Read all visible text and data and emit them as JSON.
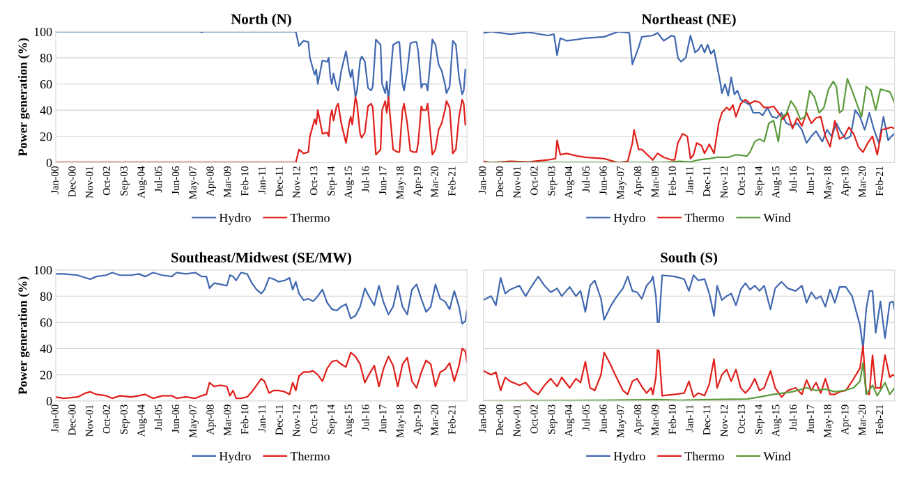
{
  "chart_data": [
    {
      "type": "line",
      "title": "North (N)",
      "ylabel": "Power generation (%)",
      "xlim": [
        "2000-01",
        "2021-11"
      ],
      "ylim": [
        0,
        100
      ],
      "yticks": [
        0,
        20,
        40,
        60,
        80,
        100
      ],
      "grid": "y",
      "legend": "bottom",
      "xticks": [
        {
          "value": "2000-01",
          "label": "Jan-00"
        },
        {
          "value": "2000-12",
          "label": "Dec-00"
        },
        {
          "value": "2001-11",
          "label": "Nov-01"
        },
        {
          "value": "2002-10",
          "label": "Oct-02"
        },
        {
          "value": "2003-09",
          "label": "Sep-03"
        },
        {
          "value": "2004-08",
          "label": "Aug-04"
        },
        {
          "value": "2005-07",
          "label": "Jul-05"
        },
        {
          "value": "2006-06",
          "label": "Jun-06"
        },
        {
          "value": "2007-05",
          "label": "May-07"
        },
        {
          "value": "2008-04",
          "label": "Apr-08"
        },
        {
          "value": "2009-03",
          "label": "Mar-09"
        },
        {
          "value": "2010-02",
          "label": "Feb-10"
        },
        {
          "value": "2011-01",
          "label": "Jan-11"
        },
        {
          "value": "2011-12",
          "label": "Dec-11"
        },
        {
          "value": "2012-11",
          "label": "Nov-12"
        },
        {
          "value": "2013-10",
          "label": "Oct-13"
        },
        {
          "value": "2014-09",
          "label": "Sep-14"
        },
        {
          "value": "2015-08",
          "label": "Aug-15"
        },
        {
          "value": "2016-07",
          "label": "Jul-16"
        },
        {
          "value": "2017-06",
          "label": "Jun-17"
        },
        {
          "value": "2018-05",
          "label": "May-18"
        },
        {
          "value": "2019-04",
          "label": "Apr-19"
        },
        {
          "value": "2020-03",
          "label": "Mar-20"
        },
        {
          "value": "2021-02",
          "label": "Feb-21"
        }
      ],
      "series": [
        {
          "name": "Hydro",
          "color": "#4068b0",
          "x": [
            "2000-01",
            "2007-09",
            "2007-10",
            "2007-11",
            "2012-10",
            "2012-12",
            "2013-03",
            "2013-06",
            "2013-07",
            "2013-10",
            "2013-11",
            "2013-12",
            "2014-03",
            "2014-06",
            "2014-07",
            "2014-08",
            "2014-09",
            "2014-10",
            "2014-12",
            "2015-01",
            "2015-03",
            "2015-06",
            "2015-08",
            "2015-09",
            "2015-10",
            "2015-12",
            "2016-01",
            "2016-03",
            "2016-04",
            "2016-06",
            "2016-08",
            "2016-10",
            "2016-11",
            "2017-01",
            "2017-04",
            "2017-05",
            "2017-07",
            "2017-08",
            "2017-09",
            "2017-12",
            "2018-03",
            "2018-04",
            "2018-06",
            "2018-07",
            "2018-09",
            "2018-11",
            "2019-01",
            "2019-03",
            "2019-04",
            "2019-06",
            "2019-07",
            "2019-09",
            "2019-10",
            "2020-01",
            "2020-03",
            "2020-05",
            "2020-07",
            "2020-09",
            "2020-10",
            "2020-12",
            "2021-02",
            "2021-04",
            "2021-06",
            "2021-08",
            "2021-09",
            "2021-10"
          ],
          "values": [
            100,
            100,
            99.5,
            100,
            100,
            89,
            93,
            92,
            80,
            67,
            71,
            60,
            78,
            77,
            80,
            65,
            60,
            68,
            57,
            55,
            70,
            85,
            70,
            65,
            71,
            50,
            55,
            78,
            81,
            77,
            57,
            55,
            58,
            94,
            90,
            60,
            53,
            62,
            47,
            90,
            92,
            92,
            60,
            55,
            70,
            91,
            92,
            92,
            85,
            57,
            60,
            60,
            55,
            94,
            90,
            75,
            70,
            60,
            53,
            58,
            93,
            90,
            65,
            52,
            55,
            71
          ]
        },
        {
          "name": "Thermo",
          "color": "#e0201b",
          "x": [
            "2000-01",
            "2012-10",
            "2012-12",
            "2013-03",
            "2013-06",
            "2013-07",
            "2013-10",
            "2013-11",
            "2013-12",
            "2014-03",
            "2014-06",
            "2014-07",
            "2014-08",
            "2014-09",
            "2014-10",
            "2014-12",
            "2015-01",
            "2015-03",
            "2015-06",
            "2015-08",
            "2015-09",
            "2015-10",
            "2015-12",
            "2016-01",
            "2016-03",
            "2016-04",
            "2016-06",
            "2016-08",
            "2016-10",
            "2016-11",
            "2017-01",
            "2017-04",
            "2017-05",
            "2017-07",
            "2017-08",
            "2017-09",
            "2017-12",
            "2018-03",
            "2018-04",
            "2018-06",
            "2018-07",
            "2018-09",
            "2018-11",
            "2019-01",
            "2019-03",
            "2019-04",
            "2019-06",
            "2019-07",
            "2019-09",
            "2019-10",
            "2020-01",
            "2020-03",
            "2020-05",
            "2020-07",
            "2020-09",
            "2020-10",
            "2020-12",
            "2021-02",
            "2021-04",
            "2021-06",
            "2021-08",
            "2021-09",
            "2021-10"
          ],
          "values": [
            0,
            0,
            10,
            7,
            8,
            20,
            33,
            29,
            40,
            22,
            23,
            20,
            35,
            40,
            32,
            43,
            45,
            30,
            15,
            30,
            35,
            29,
            50,
            45,
            22,
            19,
            23,
            43,
            45,
            42,
            6,
            10,
            40,
            47,
            38,
            50,
            10,
            8,
            8,
            40,
            45,
            30,
            9,
            8,
            8,
            15,
            43,
            40,
            40,
            45,
            6,
            10,
            25,
            30,
            40,
            47,
            42,
            7,
            10,
            35,
            48,
            45,
            29
          ]
        }
      ]
    },
    {
      "type": "line",
      "title": "Northeast (NE)",
      "xlim": [
        "2000-01",
        "2021-11"
      ],
      "ylim": [
        0,
        100
      ],
      "yticks": [
        0,
        20,
        40,
        60,
        80,
        100
      ],
      "grid": "y",
      "legend": "bottom",
      "tick_labels": "x",
      "xticks": [
        {
          "value": "2000-01",
          "label": "Jan-00"
        },
        {
          "value": "2000-12",
          "label": "Dec-00"
        },
        {
          "value": "2001-11",
          "label": "Nov-01"
        },
        {
          "value": "2002-10",
          "label": "Oct-02"
        },
        {
          "value": "2003-09",
          "label": "Sep-03"
        },
        {
          "value": "2004-08",
          "label": "Aug-04"
        },
        {
          "value": "2005-07",
          "label": "Jul-05"
        },
        {
          "value": "2006-06",
          "label": "Jun-06"
        },
        {
          "value": "2007-05",
          "label": "May-07"
        },
        {
          "value": "2008-04",
          "label": "Apr-08"
        },
        {
          "value": "2009-03",
          "label": "Mar-09"
        },
        {
          "value": "2010-02",
          "label": "Feb-10"
        },
        {
          "value": "2011-01",
          "label": "Jan-11"
        },
        {
          "value": "2011-12",
          "label": "Dec-11"
        },
        {
          "value": "2012-11",
          "label": "Nov-12"
        },
        {
          "value": "2013-10",
          "label": "Oct-13"
        },
        {
          "value": "2014-09",
          "label": "Sep-14"
        },
        {
          "value": "2015-08",
          "label": "Aug-15"
        },
        {
          "value": "2016-07",
          "label": "Jul-16"
        },
        {
          "value": "2017-06",
          "label": "Jun-17"
        },
        {
          "value": "2018-05",
          "label": "May-18"
        },
        {
          "value": "2019-04",
          "label": "Apr-19"
        },
        {
          "value": "2020-03",
          "label": "Mar-20"
        },
        {
          "value": "2021-02",
          "label": "Feb-21"
        }
      ],
      "series": [
        {
          "name": "Hydro",
          "color": "#4068b0",
          "x": [
            "2000-01",
            "2000-06",
            "2001-06",
            "2002-06",
            "2003-06",
            "2003-10",
            "2003-12",
            "2004-02",
            "2004-06",
            "2005-01",
            "2005-06",
            "2006-06",
            "2007-03",
            "2007-10",
            "2007-12",
            "2008-04",
            "2008-06",
            "2009-01",
            "2009-04",
            "2009-08",
            "2010-01",
            "2010-03",
            "2010-05",
            "2010-07",
            "2010-10",
            "2011-01",
            "2011-04",
            "2011-06",
            "2011-08",
            "2011-10",
            "2011-12",
            "2012-02",
            "2012-04",
            "2012-08",
            "2012-09",
            "2012-11",
            "2013-01",
            "2013-03",
            "2013-05",
            "2013-07",
            "2013-09",
            "2013-12",
            "2014-03",
            "2014-05",
            "2014-09",
            "2014-11",
            "2015-02",
            "2015-05",
            "2015-08",
            "2015-11",
            "2016-02",
            "2016-06",
            "2016-09",
            "2016-12",
            "2017-03",
            "2017-06",
            "2017-09",
            "2018-01",
            "2018-04",
            "2018-07",
            "2018-10",
            "2019-01",
            "2019-04",
            "2019-07",
            "2019-10",
            "2020-01",
            "2020-04",
            "2020-07",
            "2020-10",
            "2021-01",
            "2021-04",
            "2021-07",
            "2021-09",
            "2021-11"
          ],
          "values": [
            99,
            100,
            98,
            99.5,
            97,
            98,
            82,
            95,
            93,
            94,
            95,
            96,
            100,
            99,
            75,
            88,
            96,
            97,
            99,
            93,
            97,
            96,
            80,
            77,
            80,
            97,
            84,
            86,
            90,
            84,
            90,
            83,
            86,
            61,
            53,
            60,
            51,
            65,
            52,
            55,
            48,
            46,
            44,
            38,
            38,
            36,
            42,
            35,
            34,
            38,
            30,
            28,
            30,
            25,
            15,
            20,
            24,
            16,
            25,
            20,
            30,
            23,
            18,
            20,
            40,
            35,
            25,
            38,
            25,
            15,
            35,
            17,
            20,
            22
          ]
        },
        {
          "name": "Thermo",
          "color": "#e0201b",
          "x": [
            "2000-01",
            "2000-06",
            "2001-06",
            "2002-06",
            "2003-06",
            "2003-11",
            "2003-12",
            "2004-02",
            "2004-06",
            "2005-01",
            "2005-06",
            "2006-06",
            "2007-03",
            "2007-09",
            "2007-12",
            "2008-01",
            "2008-04",
            "2008-06",
            "2009-01",
            "2009-04",
            "2009-08",
            "2010-01",
            "2010-03",
            "2010-05",
            "2010-08",
            "2010-11",
            "2011-01",
            "2011-03",
            "2011-05",
            "2011-08",
            "2011-10",
            "2012-01",
            "2012-04",
            "2012-07",
            "2012-09",
            "2012-12",
            "2013-02",
            "2013-04",
            "2013-06",
            "2013-09",
            "2013-12",
            "2014-03",
            "2014-06",
            "2014-09",
            "2014-12",
            "2015-03",
            "2015-06",
            "2015-09",
            "2015-12",
            "2016-03",
            "2016-06",
            "2016-09",
            "2016-12",
            "2017-03",
            "2017-06",
            "2017-09",
            "2017-12",
            "2018-03",
            "2018-06",
            "2018-09",
            "2018-12",
            "2019-03",
            "2019-06",
            "2019-09",
            "2019-12",
            "2020-03",
            "2020-06",
            "2020-09",
            "2020-12",
            "2021-03",
            "2021-06",
            "2021-09",
            "2021-11"
          ],
          "values": [
            1,
            0,
            1,
            0.5,
            2,
            3,
            17,
            6,
            7,
            5,
            4,
            3,
            0,
            1,
            15,
            25,
            10,
            10,
            2,
            7,
            4,
            2,
            2,
            15,
            22,
            20,
            3,
            6,
            15,
            13,
            7,
            14,
            7,
            30,
            38,
            42,
            40,
            44,
            35,
            45,
            48,
            45,
            47,
            46,
            42,
            42,
            43,
            38,
            33,
            38,
            26,
            34,
            28,
            38,
            30,
            34,
            35,
            20,
            12,
            32,
            18,
            20,
            27,
            22,
            12,
            8,
            15,
            20,
            6,
            25,
            26,
            27,
            26
          ]
        },
        {
          "name": "Wind",
          "color": "#5b9a3a",
          "x": [
            "2000-01",
            "2009-06",
            "2010-06",
            "2011-01",
            "2011-06",
            "2012-01",
            "2012-06",
            "2013-01",
            "2013-06",
            "2014-01",
            "2014-03",
            "2014-06",
            "2014-09",
            "2014-12",
            "2015-03",
            "2015-06",
            "2015-09",
            "2015-11",
            "2016-02",
            "2016-05",
            "2016-08",
            "2016-11",
            "2017-02",
            "2017-05",
            "2017-08",
            "2017-11",
            "2018-02",
            "2018-05",
            "2018-08",
            "2018-10",
            "2018-12",
            "2019-02",
            "2019-05",
            "2019-08",
            "2019-11",
            "2020-02",
            "2020-05",
            "2020-08",
            "2020-11",
            "2021-02",
            "2021-05",
            "2021-08",
            "2021-11"
          ],
          "values": [
            0,
            0,
            1,
            0.5,
            2,
            3,
            4,
            4,
            6,
            5,
            8,
            16,
            18,
            16,
            30,
            32,
            16,
            35,
            37,
            47,
            42,
            33,
            35,
            55,
            50,
            38,
            42,
            56,
            62,
            58,
            38,
            40,
            64,
            55,
            45,
            35,
            58,
            55,
            40,
            56,
            55,
            54,
            46
          ]
        }
      ]
    },
    {
      "type": "line",
      "title": "Southeast/Midwest (SE/MW)",
      "ylabel": "Power generation (%)",
      "xlim": [
        "2000-01",
        "2021-11"
      ],
      "ylim": [
        0,
        100
      ],
      "yticks": [
        0,
        20,
        40,
        60,
        80,
        100
      ],
      "grid": "y",
      "legend": "bottom",
      "xticks": [
        {
          "value": "2000-01",
          "label": "Jan-00"
        },
        {
          "value": "2000-12",
          "label": "Dec-00"
        },
        {
          "value": "2001-11",
          "label": "Nov-01"
        },
        {
          "value": "2002-10",
          "label": "Oct-02"
        },
        {
          "value": "2003-09",
          "label": "Sep-03"
        },
        {
          "value": "2004-08",
          "label": "Aug-04"
        },
        {
          "value": "2005-07",
          "label": "Jul-05"
        },
        {
          "value": "2006-06",
          "label": "Jun-06"
        },
        {
          "value": "2007-05",
          "label": "May-07"
        },
        {
          "value": "2008-04",
          "label": "Apr-08"
        },
        {
          "value": "2009-03",
          "label": "Mar-09"
        },
        {
          "value": "2010-02",
          "label": "Feb-10"
        },
        {
          "value": "2011-01",
          "label": "Jan-11"
        },
        {
          "value": "2011-12",
          "label": "Dec-11"
        },
        {
          "value": "2012-11",
          "label": "Nov-12"
        },
        {
          "value": "2013-10",
          "label": "Oct-13"
        },
        {
          "value": "2014-09",
          "label": "Sep-14"
        },
        {
          "value": "2015-08",
          "label": "Aug-15"
        },
        {
          "value": "2016-07",
          "label": "Jul-16"
        },
        {
          "value": "2017-06",
          "label": "Jun-17"
        },
        {
          "value": "2018-05",
          "label": "May-18"
        },
        {
          "value": "2019-04",
          "label": "Apr-19"
        },
        {
          "value": "2020-03",
          "label": "Mar-20"
        },
        {
          "value": "2021-02",
          "label": "Feb-21"
        }
      ],
      "series": [
        {
          "name": "Hydro",
          "color": "#4068b0",
          "x": [
            "2000-01",
            "2000-06",
            "2001-03",
            "2001-08",
            "2001-11",
            "2002-03",
            "2002-09",
            "2003-01",
            "2003-06",
            "2004-01",
            "2004-06",
            "2004-10",
            "2005-03",
            "2005-09",
            "2006-03",
            "2006-06",
            "2006-12",
            "2007-06",
            "2007-10",
            "2008-01",
            "2008-03",
            "2008-06",
            "2008-10",
            "2009-02",
            "2009-04",
            "2009-06",
            "2009-08",
            "2009-11",
            "2010-03",
            "2010-06",
            "2010-09",
            "2010-12",
            "2011-02",
            "2011-05",
            "2011-08",
            "2011-11",
            "2012-03",
            "2012-06",
            "2012-08",
            "2012-10",
            "2012-12",
            "2013-03",
            "2013-06",
            "2013-09",
            "2013-12",
            "2014-03",
            "2014-06",
            "2014-09",
            "2014-12",
            "2015-03",
            "2015-06",
            "2015-09",
            "2015-12",
            "2016-03",
            "2016-06",
            "2016-09",
            "2016-12",
            "2017-03",
            "2017-06",
            "2017-09",
            "2017-12",
            "2018-03",
            "2018-06",
            "2018-09",
            "2018-12",
            "2019-03",
            "2019-06",
            "2019-09",
            "2019-12",
            "2020-03",
            "2020-06",
            "2020-09",
            "2020-12",
            "2021-03",
            "2021-06",
            "2021-08",
            "2021-10",
            "2021-11"
          ],
          "values": [
            97,
            97,
            96,
            94,
            93,
            95,
            96,
            98,
            96,
            96,
            97,
            95,
            98,
            96,
            95,
            98,
            97,
            98,
            95,
            95,
            86,
            90,
            89,
            88,
            96,
            95,
            92,
            98,
            97,
            90,
            85,
            82,
            85,
            94,
            93,
            91,
            92,
            94,
            85,
            91,
            82,
            77,
            78,
            76,
            80,
            85,
            75,
            70,
            69,
            72,
            74,
            63,
            65,
            72,
            86,
            79,
            73,
            88,
            75,
            66,
            72,
            88,
            72,
            66,
            85,
            89,
            78,
            68,
            72,
            89,
            78,
            76,
            70,
            84,
            72,
            59,
            61,
            69
          ]
        },
        {
          "name": "Thermo",
          "color": "#e0201b",
          "x": [
            "2000-01",
            "2000-06",
            "2001-03",
            "2001-08",
            "2001-11",
            "2002-03",
            "2002-09",
            "2003-01",
            "2003-06",
            "2004-01",
            "2004-06",
            "2004-10",
            "2005-03",
            "2005-09",
            "2006-03",
            "2006-06",
            "2006-12",
            "2007-06",
            "2007-10",
            "2008-01",
            "2008-03",
            "2008-06",
            "2008-10",
            "2009-02",
            "2009-04",
            "2009-06",
            "2009-08",
            "2009-11",
            "2010-03",
            "2010-06",
            "2010-09",
            "2010-12",
            "2011-02",
            "2011-05",
            "2011-08",
            "2011-11",
            "2012-03",
            "2012-06",
            "2012-08",
            "2012-10",
            "2012-12",
            "2013-03",
            "2013-06",
            "2013-09",
            "2013-12",
            "2014-03",
            "2014-06",
            "2014-09",
            "2014-12",
            "2015-03",
            "2015-06",
            "2015-09",
            "2015-12",
            "2016-03",
            "2016-06",
            "2016-09",
            "2016-12",
            "2017-03",
            "2017-06",
            "2017-09",
            "2017-12",
            "2018-03",
            "2018-06",
            "2018-09",
            "2018-12",
            "2019-03",
            "2019-06",
            "2019-09",
            "2019-12",
            "2020-03",
            "2020-06",
            "2020-09",
            "2020-12",
            "2021-03",
            "2021-06",
            "2021-08",
            "2021-10",
            "2021-11"
          ],
          "values": [
            3,
            2,
            3,
            6,
            7,
            5,
            4,
            2,
            4,
            3,
            4,
            5,
            2,
            4,
            4,
            2,
            3,
            2,
            4,
            5,
            14,
            11,
            12,
            11,
            4,
            8,
            2,
            2,
            3,
            7,
            12,
            17,
            15,
            6,
            8,
            8,
            7,
            5,
            14,
            8,
            19,
            22,
            22,
            23,
            20,
            15,
            25,
            30,
            31,
            28,
            26,
            37,
            34,
            28,
            14,
            21,
            27,
            11,
            25,
            34,
            27,
            11,
            28,
            33,
            15,
            10,
            22,
            31,
            28,
            11,
            22,
            24,
            29,
            15,
            27,
            40,
            38,
            30
          ]
        }
      ]
    },
    {
      "type": "line",
      "title": "South (S)",
      "xlim": [
        "2000-01",
        "2021-11"
      ],
      "ylim": [
        0,
        100
      ],
      "yticks": [
        0,
        20,
        40,
        60,
        80,
        100
      ],
      "grid": "y",
      "legend": "bottom",
      "tick_labels": "x",
      "xticks": [
        {
          "value": "2000-01",
          "label": "Jan-00"
        },
        {
          "value": "2000-12",
          "label": "Dec-00"
        },
        {
          "value": "2001-11",
          "label": "Nov-01"
        },
        {
          "value": "2002-10",
          "label": "Oct-02"
        },
        {
          "value": "2003-09",
          "label": "Sep-03"
        },
        {
          "value": "2004-08",
          "label": "Aug-04"
        },
        {
          "value": "2005-07",
          "label": "Jul-05"
        },
        {
          "value": "2006-06",
          "label": "Jun-06"
        },
        {
          "value": "2007-05",
          "label": "May-07"
        },
        {
          "value": "2008-04",
          "label": "Apr-08"
        },
        {
          "value": "2009-03",
          "label": "Mar-09"
        },
        {
          "value": "2010-02",
          "label": "Feb-10"
        },
        {
          "value": "2011-01",
          "label": "Jan-11"
        },
        {
          "value": "2011-12",
          "label": "Dec-11"
        },
        {
          "value": "2012-11",
          "label": "Nov-12"
        },
        {
          "value": "2013-10",
          "label": "Oct-13"
        },
        {
          "value": "2014-09",
          "label": "Sep-14"
        },
        {
          "value": "2015-08",
          "label": "Aug-15"
        },
        {
          "value": "2016-07",
          "label": "Jul-16"
        },
        {
          "value": "2017-06",
          "label": "Jun-17"
        },
        {
          "value": "2018-05",
          "label": "May-18"
        },
        {
          "value": "2019-04",
          "label": "Apr-19"
        },
        {
          "value": "2020-03",
          "label": "Mar-20"
        },
        {
          "value": "2021-02",
          "label": "Feb-21"
        }
      ],
      "series": [
        {
          "name": "Hydro",
          "color": "#4068b0",
          "x": [
            "2000-01",
            "2000-06",
            "2000-09",
            "2000-12",
            "2001-03",
            "2001-06",
            "2001-12",
            "2002-04",
            "2002-08",
            "2002-12",
            "2003-04",
            "2003-08",
            "2003-12",
            "2004-03",
            "2004-08",
            "2004-12",
            "2005-03",
            "2005-06",
            "2005-09",
            "2005-12",
            "2006-04",
            "2006-06",
            "2006-10",
            "2007-01",
            "2007-06",
            "2007-09",
            "2007-12",
            "2008-03",
            "2008-06",
            "2008-09",
            "2008-12",
            "2009-01",
            "2009-03",
            "2009-04",
            "2009-05",
            "2009-07",
            "2010-03",
            "2010-09",
            "2010-12",
            "2011-03",
            "2011-06",
            "2011-10",
            "2012-01",
            "2012-04",
            "2012-06",
            "2012-09",
            "2012-12",
            "2013-03",
            "2013-06",
            "2013-09",
            "2013-12",
            "2014-03",
            "2014-06",
            "2014-09",
            "2014-12",
            "2015-04",
            "2015-07",
            "2015-11",
            "2016-03",
            "2016-08",
            "2016-12",
            "2017-03",
            "2017-06",
            "2017-09",
            "2017-12",
            "2018-03",
            "2018-06",
            "2018-09",
            "2018-12",
            "2019-04",
            "2019-08",
            "2020-01",
            "2020-03",
            "2020-05",
            "2020-07",
            "2020-09",
            "2020-11",
            "2021-02",
            "2021-05",
            "2021-08",
            "2021-10",
            "2021-11"
          ],
          "values": [
            77,
            80,
            73,
            94,
            82,
            85,
            88,
            80,
            88,
            95,
            88,
            83,
            86,
            80,
            87,
            80,
            84,
            68,
            88,
            92,
            78,
            62,
            72,
            78,
            86,
            95,
            84,
            83,
            78,
            88,
            92,
            95,
            80,
            60,
            60,
            96,
            95,
            93,
            84,
            96,
            92,
            93,
            82,
            65,
            88,
            77,
            80,
            82,
            73,
            85,
            90,
            85,
            88,
            84,
            88,
            70,
            86,
            91,
            86,
            84,
            88,
            75,
            83,
            78,
            80,
            72,
            85,
            75,
            87,
            87,
            80,
            58,
            40,
            70,
            84,
            84,
            52,
            76,
            48,
            75,
            76,
            70
          ]
        },
        {
          "name": "Thermo",
          "color": "#e0201b",
          "x": [
            "2000-01",
            "2000-06",
            "2000-09",
            "2000-12",
            "2001-03",
            "2001-06",
            "2001-12",
            "2002-04",
            "2002-08",
            "2002-12",
            "2003-04",
            "2003-08",
            "2003-12",
            "2004-03",
            "2004-08",
            "2004-12",
            "2005-03",
            "2005-06",
            "2005-09",
            "2005-12",
            "2006-04",
            "2006-06",
            "2006-10",
            "2007-01",
            "2007-06",
            "2007-09",
            "2007-12",
            "2008-03",
            "2008-06",
            "2008-09",
            "2008-12",
            "2009-01",
            "2009-03",
            "2009-04",
            "2009-05",
            "2009-07",
            "2010-03",
            "2010-09",
            "2010-12",
            "2011-03",
            "2011-06",
            "2011-10",
            "2012-01",
            "2012-04",
            "2012-06",
            "2012-09",
            "2012-12",
            "2013-03",
            "2013-06",
            "2013-09",
            "2013-12",
            "2014-03",
            "2014-06",
            "2014-09",
            "2014-12",
            "2015-04",
            "2015-07",
            "2015-11",
            "2016-03",
            "2016-08",
            "2016-12",
            "2017-03",
            "2017-06",
            "2017-09",
            "2017-12",
            "2018-03",
            "2018-06",
            "2018-09",
            "2018-12",
            "2019-04",
            "2019-08",
            "2020-01",
            "2020-03",
            "2020-05",
            "2020-07",
            "2020-09",
            "2020-11",
            "2021-02",
            "2021-05",
            "2021-08",
            "2021-10",
            "2021-11"
          ],
          "values": [
            23,
            20,
            22,
            8,
            18,
            15,
            12,
            14,
            8,
            5,
            12,
            17,
            11,
            18,
            10,
            17,
            14,
            30,
            10,
            8,
            20,
            37,
            28,
            20,
            8,
            5,
            15,
            17,
            11,
            6,
            10,
            5,
            18,
            39,
            38,
            4,
            5,
            6,
            15,
            3,
            6,
            4,
            13,
            32,
            10,
            20,
            24,
            15,
            24,
            10,
            6,
            10,
            17,
            8,
            10,
            23,
            10,
            3,
            8,
            10,
            5,
            16,
            8,
            14,
            6,
            17,
            5,
            5,
            7,
            8,
            15,
            25,
            42,
            6,
            5,
            35,
            10,
            10,
            35,
            18,
            20,
            19
          ]
        },
        {
          "name": "Wind",
          "color": "#5b9a3a",
          "x": [
            "2000-01",
            "2006-06",
            "2009-04",
            "2010-06",
            "2012-01",
            "2014-01",
            "2014-09",
            "2015-06",
            "2016-06",
            "2017-03",
            "2017-09",
            "2018-03",
            "2018-09",
            "2019-03",
            "2019-09",
            "2020-01",
            "2020-03",
            "2020-05",
            "2020-09",
            "2020-12",
            "2021-05",
            "2021-08",
            "2021-11"
          ],
          "values": [
            0,
            0.5,
            1,
            0.5,
            1,
            1.5,
            3,
            5,
            7,
            10,
            8,
            9,
            7,
            8,
            10,
            15,
            29,
            5,
            12,
            4,
            14,
            5,
            10
          ]
        }
      ]
    }
  ]
}
